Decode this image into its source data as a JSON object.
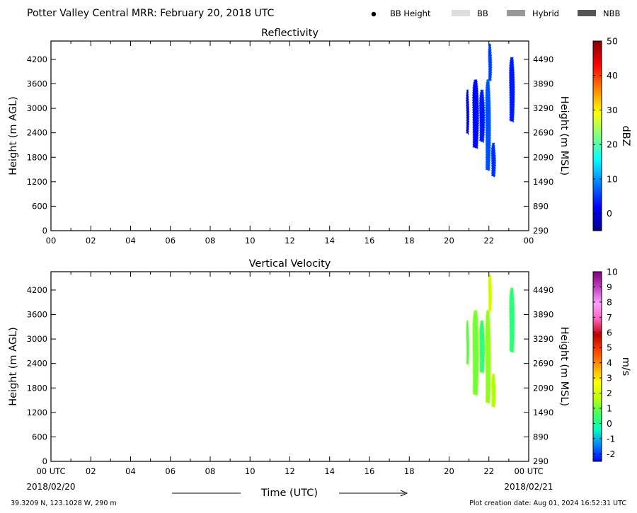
{
  "header": {
    "title": "Potter Valley Central MRR:  February 20, 2018 UTC",
    "legend": [
      {
        "label": "BB Height",
        "kind": "dot",
        "color": "#000000"
      },
      {
        "label": "BB",
        "kind": "swatch",
        "color": "#dddddd"
      },
      {
        "label": "Hybrid",
        "kind": "swatch",
        "color": "#999999"
      },
      {
        "label": "NBB",
        "kind": "swatch",
        "color": "#555555"
      }
    ]
  },
  "footer": {
    "location": "39.3209 N, 123.1028 W, 290 m",
    "creation": "Plot creation date: Aug 01, 2024 16:52:31 UTC",
    "start_date": "2018/02/20",
    "end_date": "2018/02/21"
  },
  "chart_data": [
    {
      "type": "heatmap",
      "title": "Reflectivity",
      "xlabel": "",
      "ylabel": "Height (m AGL)",
      "ylabel_right": "Height (m MSL)",
      "xlim": [
        0,
        24
      ],
      "ylim": [
        0,
        4650
      ],
      "x_ticks": [
        "00",
        "02",
        "04",
        "06",
        "08",
        "10",
        "12",
        "14",
        "16",
        "18",
        "20",
        "22",
        "00"
      ],
      "y_ticks": [
        0,
        600,
        1200,
        1800,
        2400,
        3000,
        3600,
        4200
      ],
      "y_ticks_right": [
        290,
        890,
        1490,
        2090,
        2690,
        3290,
        3890,
        4490
      ],
      "colorbar": {
        "label": "dBZ",
        "range": [
          -5,
          50
        ],
        "ticks": [
          0,
          10,
          20,
          30,
          40,
          50
        ],
        "stops": [
          "#00008f",
          "#0000ff",
          "#0080ff",
          "#00ffff",
          "#80ff80",
          "#ffff00",
          "#ff8000",
          "#ff0000",
          "#800000"
        ]
      },
      "echoes": [
        {
          "t": [
            20.85,
            21.0
          ],
          "h": [
            2400,
            3450
          ],
          "v": 0
        },
        {
          "t": [
            21.15,
            21.5
          ],
          "h": [
            2050,
            3700
          ],
          "v": 2
        },
        {
          "t": [
            21.5,
            21.8
          ],
          "h": [
            2200,
            3450
          ],
          "v": 3
        },
        {
          "t": [
            21.8,
            22.1
          ],
          "h": [
            1500,
            3700
          ],
          "v": 6
        },
        {
          "t": [
            21.95,
            22.15
          ],
          "h": [
            3700,
            4580
          ],
          "v": 5
        },
        {
          "t": [
            22.1,
            22.35
          ],
          "h": [
            1350,
            2150
          ],
          "v": 4
        },
        {
          "t": [
            23.0,
            23.3
          ],
          "h": [
            2700,
            4250
          ],
          "v": 3
        }
      ]
    },
    {
      "type": "heatmap",
      "title": "Vertical Velocity",
      "xlabel": "Time (UTC)",
      "ylabel": "Height (m AGL)",
      "ylabel_right": "Height (m MSL)",
      "xlim": [
        0,
        24
      ],
      "ylim": [
        0,
        4650
      ],
      "x_ticks": [
        "00 UTC",
        "02",
        "04",
        "06",
        "08",
        "10",
        "12",
        "14",
        "16",
        "18",
        "20",
        "22",
        "00 UTC"
      ],
      "y_ticks": [
        0,
        600,
        1200,
        1800,
        2400,
        3000,
        3600,
        4200
      ],
      "y_ticks_right": [
        290,
        890,
        1490,
        2090,
        2690,
        3290,
        3890,
        4490
      ],
      "colorbar": {
        "label": "m/s",
        "range": [
          -2.5,
          10
        ],
        "ticks": [
          -2,
          -1,
          0,
          1,
          2,
          3,
          4,
          5,
          6,
          7,
          8,
          9,
          10
        ],
        "stops": [
          "#0000ff",
          "#0080ff",
          "#00ffc0",
          "#40ff60",
          "#c0ff00",
          "#ffff00",
          "#ffa000",
          "#ff4000",
          "#c00000",
          "#ff60c0",
          "#ffa0ff",
          "#c040c0",
          "#800080"
        ]
      },
      "echoes": [
        {
          "t": [
            20.85,
            21.0
          ],
          "h": [
            2400,
            3450
          ],
          "v": 0.6
        },
        {
          "t": [
            21.15,
            21.5
          ],
          "h": [
            1650,
            3700
          ],
          "v": 1.0
        },
        {
          "t": [
            21.5,
            21.8
          ],
          "h": [
            2200,
            3450
          ],
          "v": 0.3
        },
        {
          "t": [
            21.8,
            22.1
          ],
          "h": [
            1450,
            3700
          ],
          "v": 1.2
        },
        {
          "t": [
            21.95,
            22.15
          ],
          "h": [
            3700,
            4580
          ],
          "v": 1.8
        },
        {
          "t": [
            22.1,
            22.35
          ],
          "h": [
            1350,
            2150
          ],
          "v": 1.5
        },
        {
          "t": [
            23.0,
            23.3
          ],
          "h": [
            2700,
            4250
          ],
          "v": 0.2
        }
      ]
    }
  ]
}
